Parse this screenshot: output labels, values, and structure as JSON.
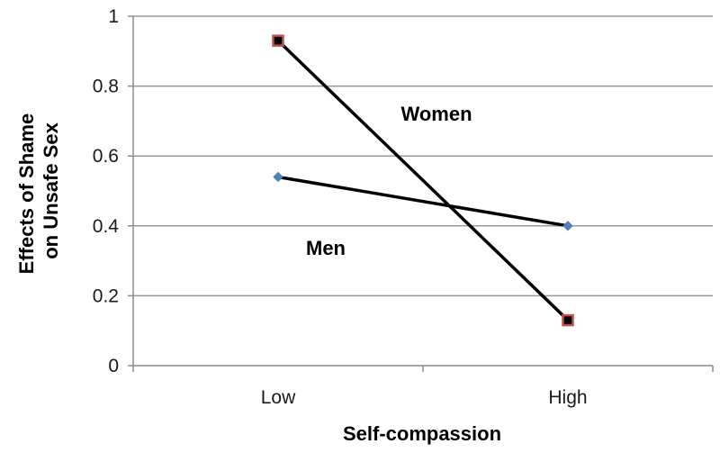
{
  "chart_data": {
    "type": "line",
    "categories": [
      "Low",
      "High"
    ],
    "series": [
      {
        "name": "Women",
        "values": [
          0.93,
          0.13
        ],
        "marker": "square",
        "marker_fill": "#000000",
        "marker_edge": "#c0504d"
      },
      {
        "name": "Men",
        "values": [
          0.54,
          0.4
        ],
        "marker": "diamond",
        "marker_fill": "#4f81bd",
        "marker_edge": "#4f81bd"
      }
    ],
    "title": "",
    "xlabel": "Self-compassion",
    "ylabel_lines": [
      "Effects of Shame",
      "on Unsafe Sex"
    ],
    "ylim": [
      0,
      1
    ],
    "yticks": [
      {
        "value": 0,
        "label": "0"
      },
      {
        "value": 0.2,
        "label": "0.2"
      },
      {
        "value": 0.4,
        "label": "0.4"
      },
      {
        "value": 0.6,
        "label": "0.6"
      },
      {
        "value": 0.8,
        "label": "0.8"
      },
      {
        "value": 1,
        "label": "1"
      }
    ],
    "grid": true,
    "legend": "inline labels",
    "colors": {
      "line": "#000000",
      "grid": "#9a9a9a",
      "axis": "#8c8c8c"
    }
  }
}
